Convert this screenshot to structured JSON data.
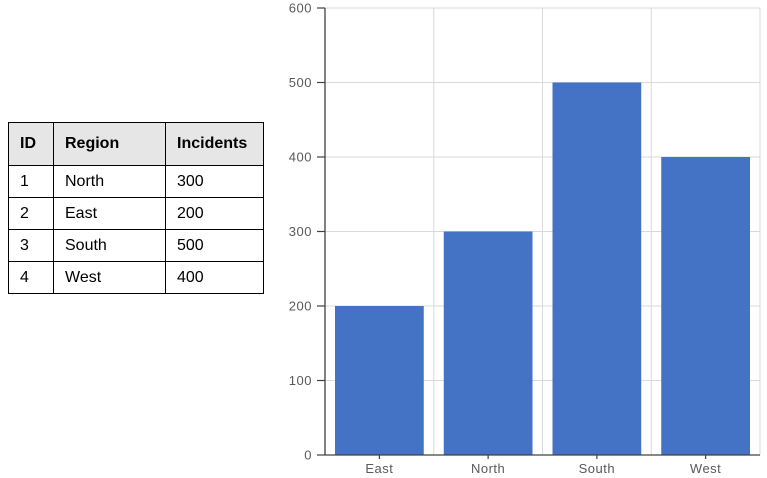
{
  "table": {
    "columns": [
      "ID",
      "Region",
      "Incidents"
    ],
    "rows": [
      [
        "1",
        "North",
        "300"
      ],
      [
        "2",
        "East",
        "200"
      ],
      [
        "3",
        "South",
        "500"
      ],
      [
        "4",
        "West",
        "400"
      ]
    ]
  },
  "chart_data": {
    "type": "bar",
    "title": "",
    "xlabel": "",
    "ylabel": "",
    "categories": [
      "East",
      "North",
      "South",
      "West"
    ],
    "values": [
      200,
      300,
      500,
      400
    ],
    "ylim": [
      0,
      600
    ],
    "ytick_interval": 100,
    "ytick_labels": [
      "0",
      "100",
      "200",
      "300",
      "400",
      "500",
      "600"
    ],
    "grid": true,
    "legend": false,
    "colors": {
      "bar": "#4472c4",
      "gridline": "#d9d9d9",
      "axis": "#404040",
      "tick_label": "#595959"
    }
  }
}
